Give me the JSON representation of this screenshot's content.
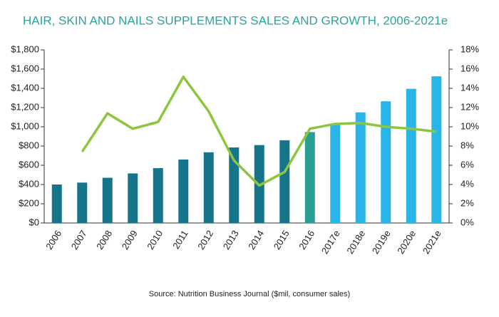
{
  "chart_data": {
    "type": "combo",
    "title": "HAIR, SKIN AND NAILS SUPPLEMENTS SALES AND GROWTH, 2006-2021e",
    "source": "Source: Nutrition Business Journal  ($mil, consumer sales)",
    "categories": [
      "2006",
      "2007",
      "2008",
      "2009",
      "2010",
      "2011",
      "2012",
      "2013",
      "2014",
      "2015",
      "2016",
      "2017e",
      "2018e",
      "2019e",
      "2020e",
      "2021e"
    ],
    "series": [
      {
        "type": "bar",
        "values": [
          400,
          420,
          470,
          515,
          570,
          660,
          735,
          785,
          810,
          860,
          945,
          1030,
          1150,
          1265,
          1395,
          1525
        ],
        "colors": [
          "#17758a",
          "#17758a",
          "#17758a",
          "#17758a",
          "#17758a",
          "#17758a",
          "#17758a",
          "#17758a",
          "#17758a",
          "#17758a",
          "#2a9d94",
          "#29b5e8",
          "#29b5e8",
          "#29b5e8",
          "#29b5e8",
          "#29b5e8"
        ]
      },
      {
        "type": "line",
        "axis": "y2",
        "color": "#8cc63f",
        "values": [
          null,
          7.4,
          11.4,
          9.8,
          10.5,
          15.2,
          11.6,
          6.5,
          3.9,
          5.3,
          9.8,
          10.3,
          10.4,
          10.0,
          9.8,
          9.5
        ]
      }
    ],
    "ylim": [
      0,
      1800
    ],
    "yticks": [
      {
        "value": 0,
        "label": "$0"
      },
      {
        "value": 200,
        "label": "$200"
      },
      {
        "value": 400,
        "label": "$400"
      },
      {
        "value": 600,
        "label": "$600"
      },
      {
        "value": 800,
        "label": "$800"
      },
      {
        "value": 1000,
        "label": "$1,000"
      },
      {
        "value": 1200,
        "label": "$1,200"
      },
      {
        "value": 1400,
        "label": "$1,400"
      },
      {
        "value": 1600,
        "label": "$1,600"
      },
      {
        "value": 1800,
        "label": "$1,800"
      }
    ],
    "y2lim": [
      0,
      18
    ],
    "y2ticks": [
      {
        "value": 0,
        "label": "0%"
      },
      {
        "value": 2,
        "label": "2%"
      },
      {
        "value": 4,
        "label": "4%"
      },
      {
        "value": 6,
        "label": "6%"
      },
      {
        "value": 8,
        "label": "8%"
      },
      {
        "value": 10,
        "label": "10%"
      },
      {
        "value": 12,
        "label": "12%"
      },
      {
        "value": 14,
        "label": "14%"
      },
      {
        "value": 16,
        "label": "16%"
      },
      {
        "value": 18,
        "label": "18%"
      }
    ],
    "grid": false
  }
}
